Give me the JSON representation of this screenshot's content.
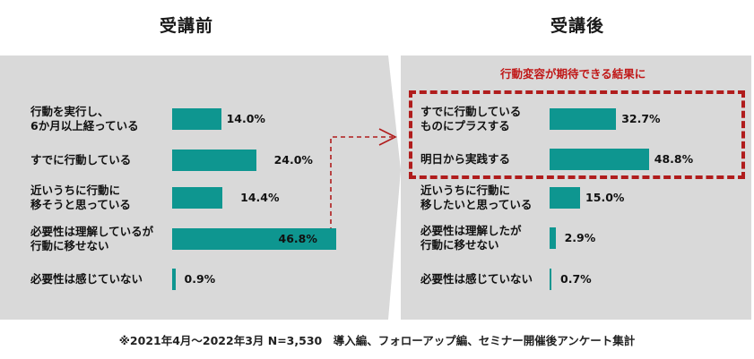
{
  "chart_data": [
    {
      "type": "bar",
      "orientation": "horizontal",
      "title": "受講前",
      "categories": [
        "行動を実行し、\n6か月以上経っている",
        "すでに行動している",
        "近いうちに行動に\n移そうと思っている",
        "必要性は理解しているが\n行動に移せない",
        "必要性は感じていない"
      ],
      "values": [
        14.0,
        24.0,
        14.4,
        46.8,
        0.9
      ],
      "value_labels": [
        "14.0%",
        "24.0%",
        "14.4%",
        "46.8%",
        "0.9%"
      ],
      "unit": "%",
      "xlim": [
        0,
        50
      ],
      "xlabel": "",
      "ylabel": "",
      "grid": false,
      "legend": "none"
    },
    {
      "type": "bar",
      "orientation": "horizontal",
      "title": "受講後",
      "categories": [
        "すでに行動している\nものにプラスする",
        "明日から実践する",
        "近いうちに行動に\n移したいと思っている",
        "必要性は理解したが\n行動に移せない",
        "必要性は感じていない"
      ],
      "values": [
        32.7,
        48.8,
        15.0,
        2.9,
        0.7
      ],
      "value_labels": [
        "32.7%",
        "48.8%",
        "15.0%",
        "2.9%",
        "0.7%"
      ],
      "unit": "%",
      "xlim": [
        0,
        50
      ],
      "xlabel": "",
      "ylabel": "",
      "grid": false,
      "legend": "none",
      "annotation": "行動変容が期待できる結果に",
      "highlighted_categories": [
        "すでに行動している\nものにプラスする",
        "明日から実践する"
      ]
    }
  ],
  "footnote": "※2021年4月～2022年3月 N=3,530　導入編、フォローアップ編、セミナー開催後アンケート集計",
  "colors": {
    "bar": "#0e9690",
    "panel_background": "#d9d9d9",
    "highlight": "#b01c1c",
    "arrow": "#b01c1c"
  }
}
